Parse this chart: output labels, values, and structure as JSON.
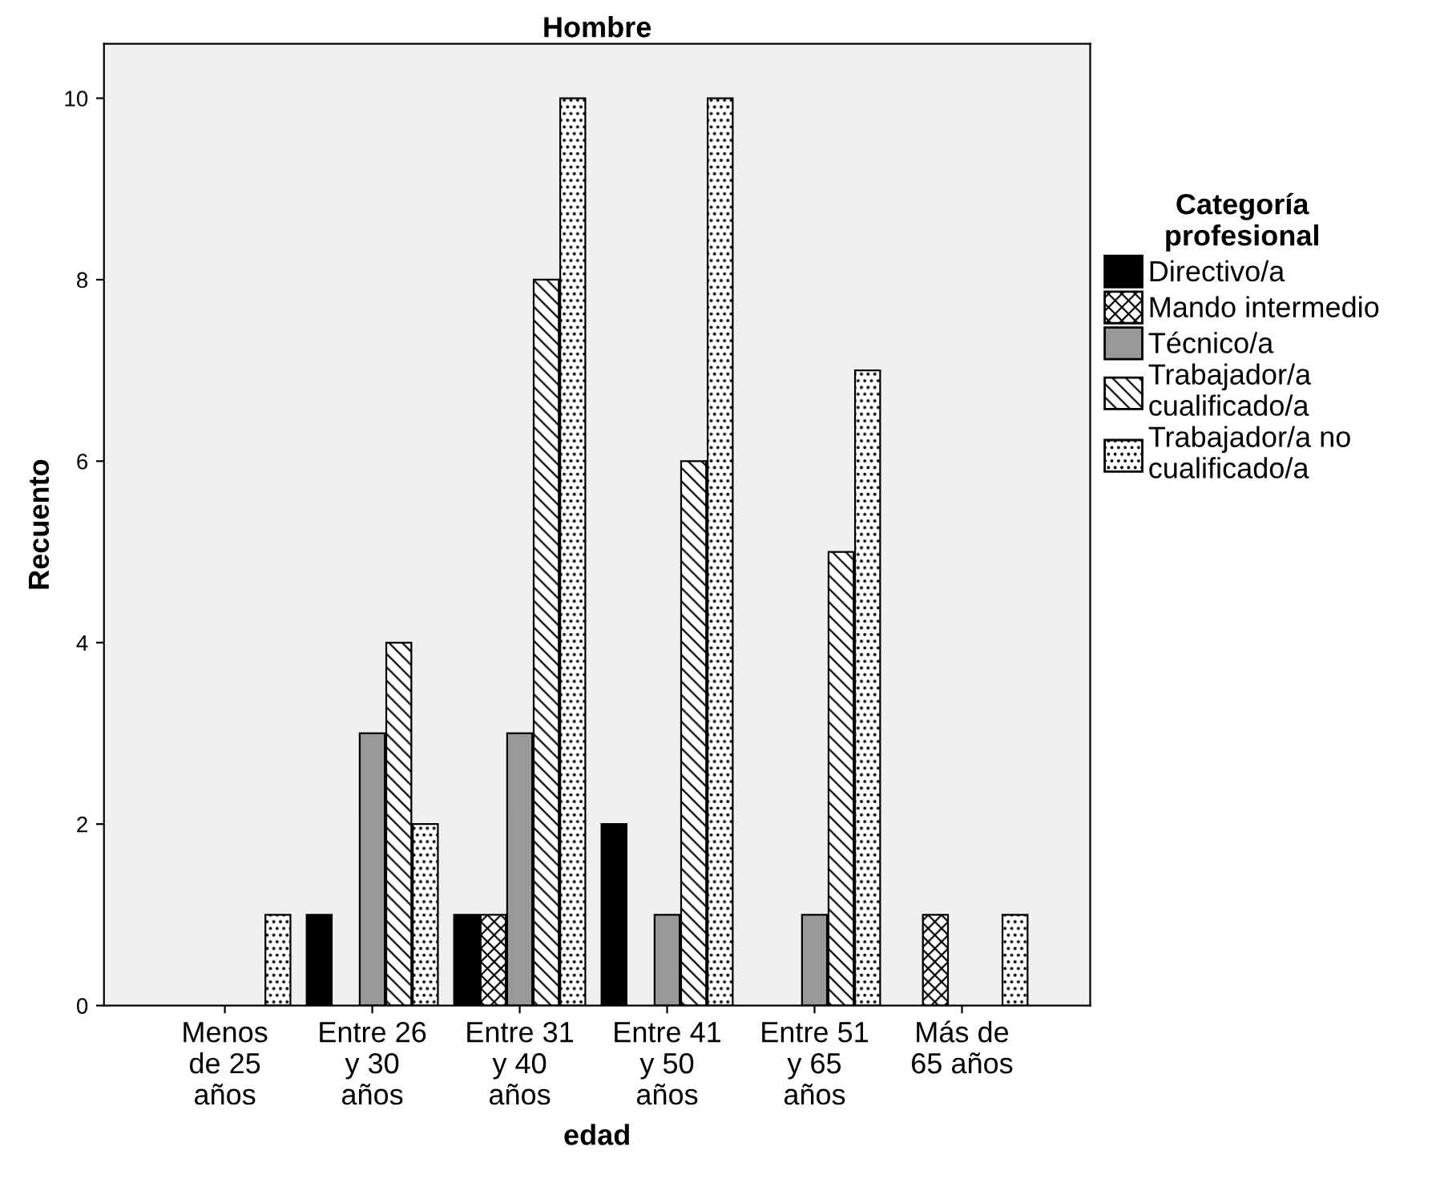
{
  "chart_data": {
    "type": "bar",
    "title": "Hombre",
    "xlabel": "edad",
    "ylabel": "Recuento",
    "legend_title": "Categoría\nprofesional",
    "categories": [
      "Menos\nde 25\naños",
      "Entre 26\ny 30\naños",
      "Entre 31\ny 40\naños",
      "Entre 41\ny 50\naños",
      "Entre 51\ny 65\naños",
      "Más de\n65 años"
    ],
    "series": [
      {
        "name": "Directivo/a",
        "color": "#000000",
        "values": [
          null,
          1,
          1,
          2,
          null,
          null
        ]
      },
      {
        "name": "Mando intermedio",
        "color": "#000000",
        "values": [
          null,
          null,
          1,
          null,
          null,
          1
        ]
      },
      {
        "name": "Técnico/a",
        "color": "#999999",
        "values": [
          null,
          3,
          3,
          1,
          1,
          null
        ]
      },
      {
        "name": "Trabajador/a\ncualificado/a",
        "color": "#000000",
        "values": [
          null,
          4,
          8,
          6,
          5,
          null
        ]
      },
      {
        "name": "Trabajador/a no\ncualificado/a",
        "color": "#000000",
        "values": [
          1,
          2,
          10,
          10,
          7,
          1
        ]
      }
    ],
    "ylim": [
      0,
      10.6
    ],
    "yticks": [
      0,
      2,
      4,
      6,
      8,
      10
    ],
    "grid": false,
    "legend": "right"
  }
}
